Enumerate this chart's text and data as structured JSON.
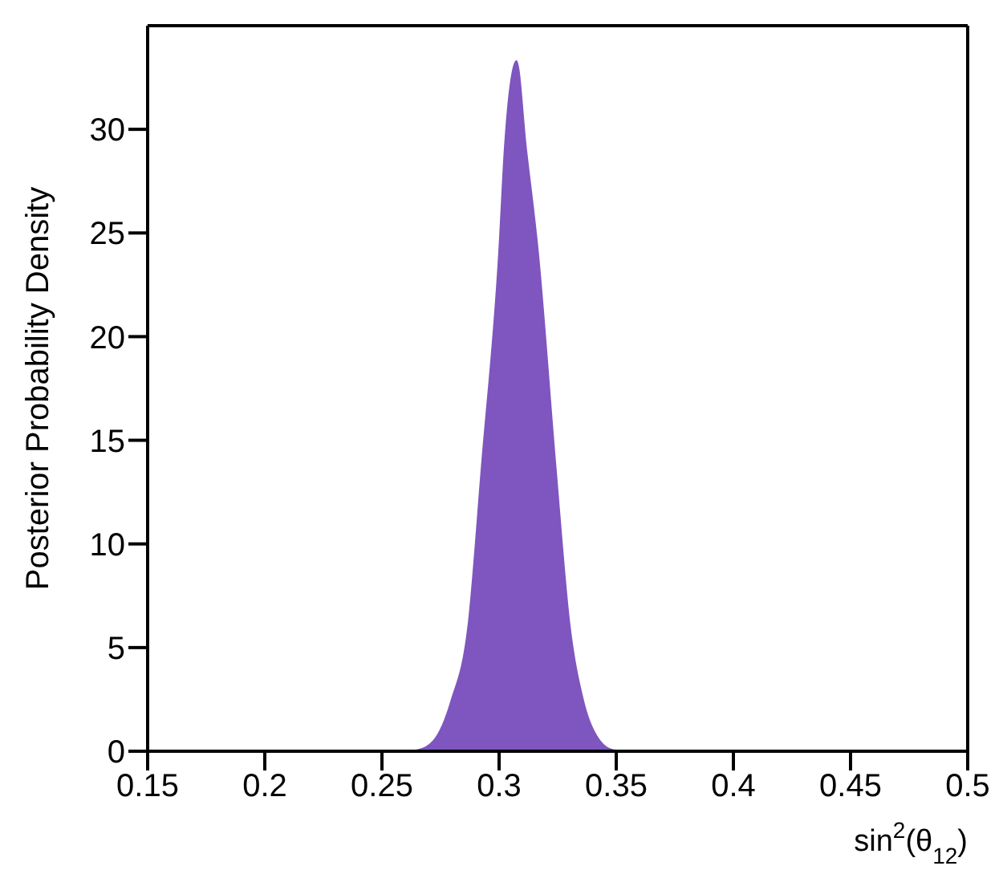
{
  "chart_data": {
    "type": "area",
    "xlabel": "sin$^{2}$(θ$_{12}$)",
    "ylabel": "Posterior Probability Density",
    "x": [
      0.15,
      0.26,
      0.265,
      0.272,
      0.2795,
      0.287,
      0.2927,
      0.3,
      0.3024,
      0.3074,
      0.3115,
      0.3166,
      0.324,
      0.33,
      0.336,
      0.343,
      0.349,
      0.355,
      0.5
    ],
    "series": [
      {
        "color": "#7f56bf",
        "values": [
          0,
          0,
          0.05,
          0.5,
          2.4,
          6.2,
          13.9,
          24.1,
          29.1,
          33.3,
          29.1,
          24.1,
          13.9,
          6.2,
          2.4,
          0.5,
          0.05,
          0,
          0
        ]
      }
    ],
    "xlim": [
      0.15,
      0.5
    ],
    "xticks": [
      0.15,
      0.2,
      0.25,
      0.3,
      0.35,
      0.4,
      0.45,
      0.5
    ],
    "ylim": [
      0,
      35
    ],
    "yticks": [
      0,
      5,
      10,
      15,
      20,
      25,
      30
    ],
    "grid": false,
    "legend": false
  }
}
